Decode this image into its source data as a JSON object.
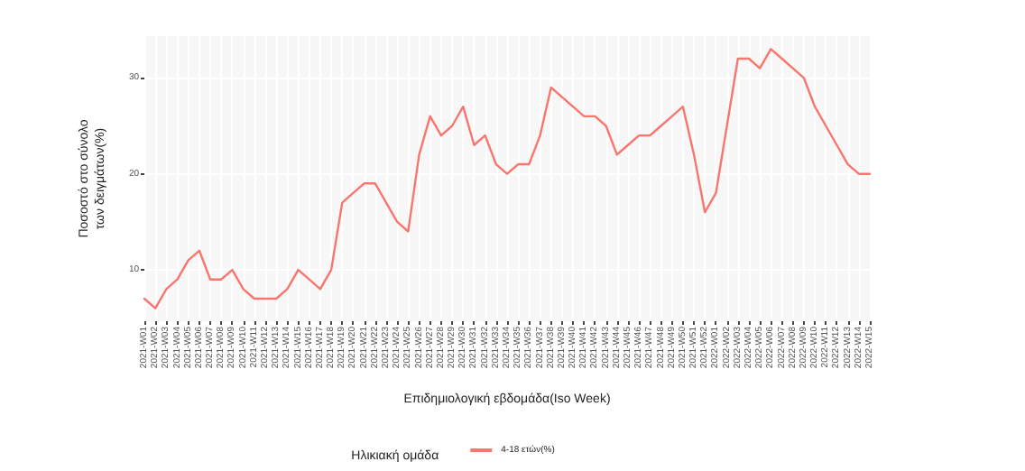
{
  "chart_data": {
    "type": "line",
    "xlabel": "Επιδημιολογική εβδομάδα(Iso Week)",
    "ylabel": "Ποσοστό στο σύνολο\nτων δειγμάτων(%)",
    "legend_title": "Ηλικιακή ομάδα",
    "categories": [
      "2021-W01",
      "2021-W02",
      "2021-W03",
      "2021-W04",
      "2021-W05",
      "2021-W06",
      "2021-W07",
      "2021-W08",
      "2021-W09",
      "2021-W10",
      "2021-W11",
      "2021-W12",
      "2021-W13",
      "2021-W14",
      "2021-W15",
      "2021-W16",
      "2021-W17",
      "2021-W18",
      "2021-W19",
      "2021-W20",
      "2021-W21",
      "2021-W22",
      "2021-W23",
      "2021-W24",
      "2021-W25",
      "2021-W26",
      "2021-W27",
      "2021-W28",
      "2021-W29",
      "2021-W30",
      "2021-W31",
      "2021-W32",
      "2021-W33",
      "2021-W34",
      "2021-W35",
      "2021-W36",
      "2021-W37",
      "2021-W38",
      "2021-W39",
      "2021-W40",
      "2021-W41",
      "2021-W42",
      "2021-W43",
      "2021-W44",
      "2021-W45",
      "2021-W46",
      "2021-W47",
      "2021-W48",
      "2021-W49",
      "2021-W50",
      "2021-W51",
      "2021-W52",
      "2022-W01",
      "2022-W02",
      "2022-W03",
      "2022-W04",
      "2022-W05",
      "2022-W06",
      "2022-W07",
      "2022-W08",
      "2022-W09",
      "2022-W10",
      "2022-W11",
      "2022-W12",
      "2022-W13",
      "2022-W14",
      "2022-W15"
    ],
    "series": [
      {
        "name": "4-18 ετών(%)",
        "color": "#f8766d",
        "values": [
          7,
          6,
          8,
          9,
          11,
          12,
          9,
          9,
          10,
          8,
          7,
          7,
          7,
          8,
          10,
          9,
          8,
          10,
          17,
          18,
          19,
          19,
          17,
          15,
          14,
          22,
          26,
          24,
          25,
          27,
          23,
          24,
          21,
          20,
          21,
          21,
          24,
          29,
          28,
          27,
          26,
          26,
          25,
          22,
          23,
          24,
          24,
          25,
          26,
          27,
          22,
          16,
          18,
          25,
          32,
          32,
          31,
          33,
          32,
          31,
          30,
          27,
          25,
          23,
          21,
          20,
          20
        ]
      }
    ],
    "ylim": [
      4.65,
      34.35
    ],
    "yticks": [
      10,
      20,
      30
    ],
    "grid": true,
    "legend": "bottom",
    "marker": "none",
    "line_style": "solid"
  }
}
